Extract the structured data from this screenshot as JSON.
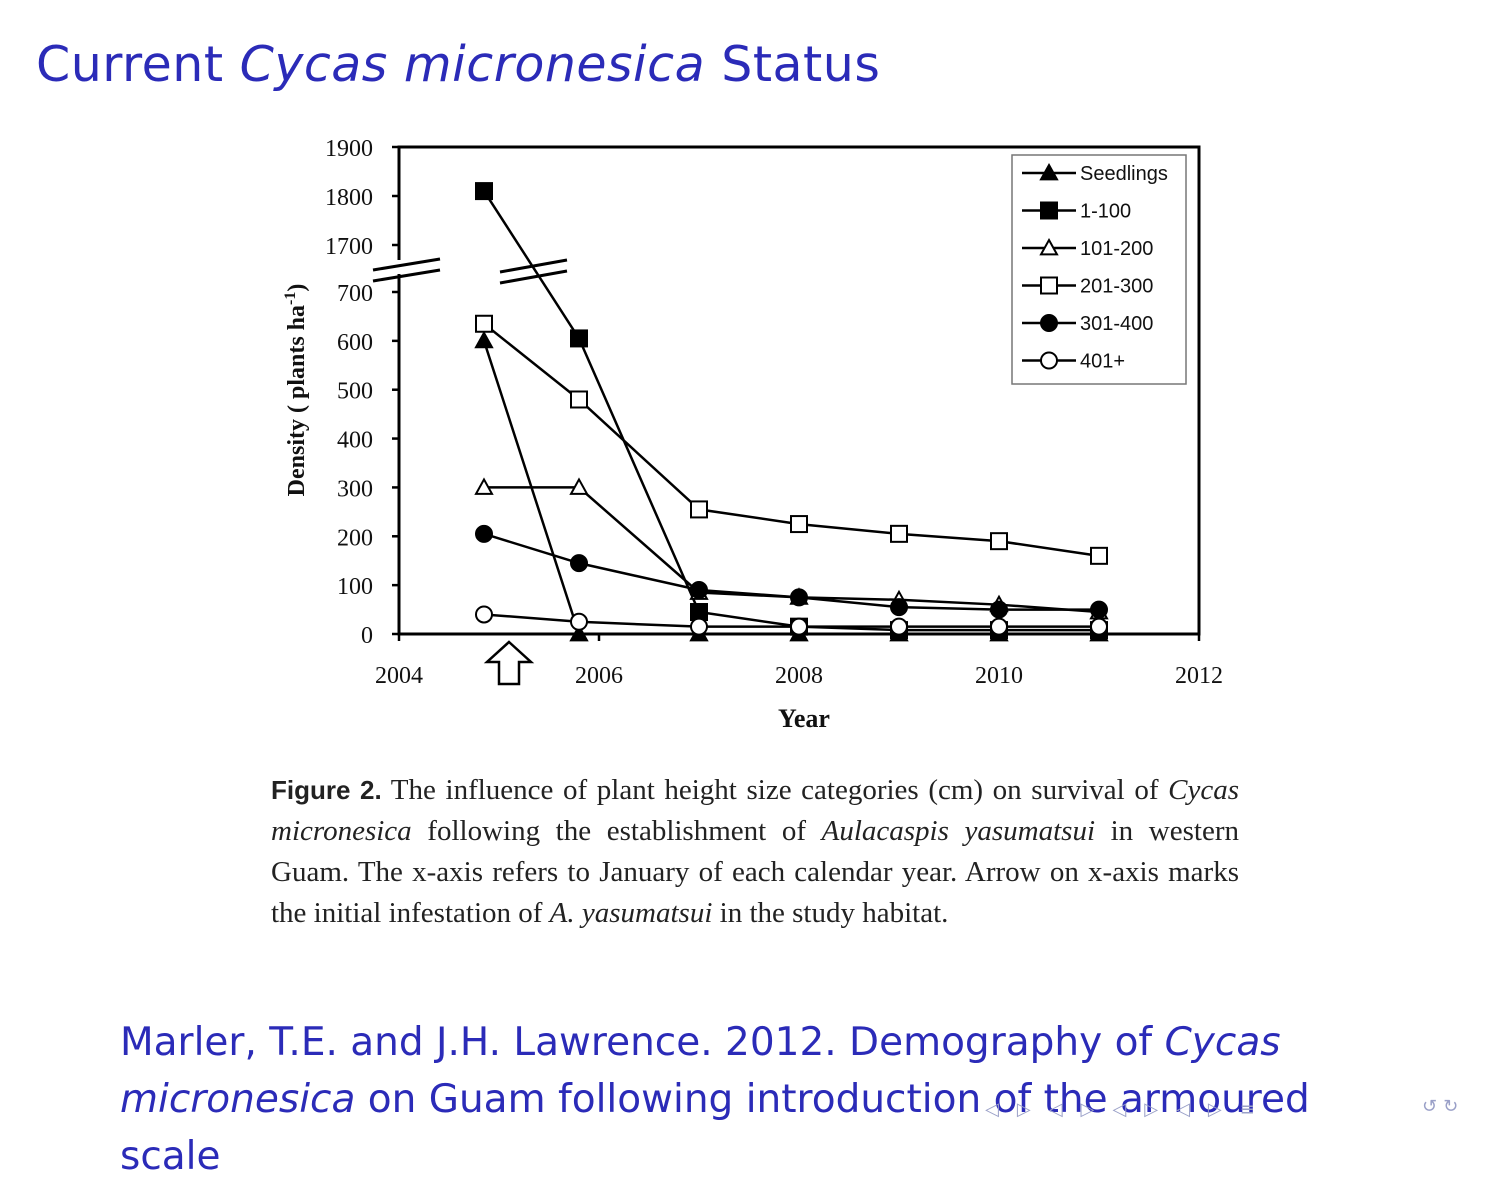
{
  "slide": {
    "title_part1": "Current ",
    "title_italic": "Cycas micronesica",
    "title_part2": " Status"
  },
  "chart_data": {
    "type": "line",
    "xlabel": "Year",
    "ylabel_main": "Density ( plants ha",
    "ylabel_sup": "-1",
    "ylabel_end": ")",
    "xlim": [
      2004,
      2012
    ],
    "x_ticks": [
      "2004",
      "2006",
      "2008",
      "2010",
      "2012"
    ],
    "y_ticks_lower": [
      "0",
      "100",
      "200",
      "300",
      "400",
      "500",
      "600",
      "700"
    ],
    "y_ticks_upper": [
      "1700",
      "1800",
      "1900"
    ],
    "y_axis_break": {
      "lower_range": [
        0,
        700
      ],
      "upper_range": [
        1700,
        1900
      ]
    },
    "legend_position": "top-right",
    "infestation_arrow_x": 2005.1,
    "series": [
      {
        "name": "Seedlings",
        "marker": "triangle-filled",
        "points": [
          [
            2004.85,
            600
          ],
          [
            2005.8,
            0
          ],
          [
            2007.0,
            0
          ],
          [
            2008.0,
            0
          ],
          [
            2009.0,
            0
          ],
          [
            2010.0,
            0
          ],
          [
            2011.0,
            0
          ]
        ]
      },
      {
        "name": "1-100",
        "marker": "square-filled",
        "points": [
          [
            2004.85,
            1810
          ],
          [
            2005.8,
            605
          ],
          [
            2007.0,
            45
          ],
          [
            2008.0,
            15
          ],
          [
            2009.0,
            8
          ],
          [
            2010.0,
            8
          ],
          [
            2011.0,
            8
          ]
        ]
      },
      {
        "name": "101-200",
        "marker": "triangle-open",
        "points": [
          [
            2004.85,
            300
          ],
          [
            2005.8,
            300
          ],
          [
            2007.0,
            85
          ],
          [
            2008.0,
            75
          ],
          [
            2009.0,
            70
          ],
          [
            2010.0,
            60
          ],
          [
            2011.0,
            45
          ]
        ]
      },
      {
        "name": "201-300",
        "marker": "square-open",
        "points": [
          [
            2004.85,
            635
          ],
          [
            2005.8,
            480
          ],
          [
            2007.0,
            255
          ],
          [
            2008.0,
            225
          ],
          [
            2009.0,
            205
          ],
          [
            2010.0,
            190
          ],
          [
            2011.0,
            160
          ]
        ]
      },
      {
        "name": "301-400",
        "marker": "circle-filled",
        "points": [
          [
            2004.85,
            205
          ],
          [
            2005.8,
            145
          ],
          [
            2007.0,
            90
          ],
          [
            2008.0,
            75
          ],
          [
            2009.0,
            55
          ],
          [
            2010.0,
            50
          ],
          [
            2011.0,
            50
          ]
        ]
      },
      {
        "name": "401+",
        "marker": "circle-open",
        "points": [
          [
            2004.85,
            40
          ],
          [
            2005.8,
            25
          ],
          [
            2007.0,
            15
          ],
          [
            2008.0,
            15
          ],
          [
            2009.0,
            15
          ],
          [
            2010.0,
            15
          ],
          [
            2011.0,
            15
          ]
        ]
      }
    ]
  },
  "caption": {
    "figure_label": "Figure 2.",
    "text1": " The influence of plant height size categories (cm) on survival of ",
    "species_italic": "Cycas micronesica",
    "text2": " following the establishment of ",
    "pest_italic": "Aulacaspis yasumatsui",
    "text3": " in western Guam. The x-axis refers to January of each calendar year. Arrow on x-axis marks the initial infestation of ",
    "pest_short_italic": "A. yasumatsui",
    "text4": " in the study habitat."
  },
  "reference": {
    "part1": "Marler, T.E. and J.H. Lawrence. 2012. Demography of ",
    "italic1": "Cycas",
    "space": " ",
    "italic2": "micronesica",
    "part2": " on Guam following introduction of the armoured scale"
  },
  "navigation": {
    "nav_symbols": [
      "◁",
      "▷",
      "◁",
      "▷",
      "◁",
      "▷",
      "◁",
      "▷",
      "≡"
    ],
    "search_symbols": [
      "↺",
      "↻"
    ]
  }
}
